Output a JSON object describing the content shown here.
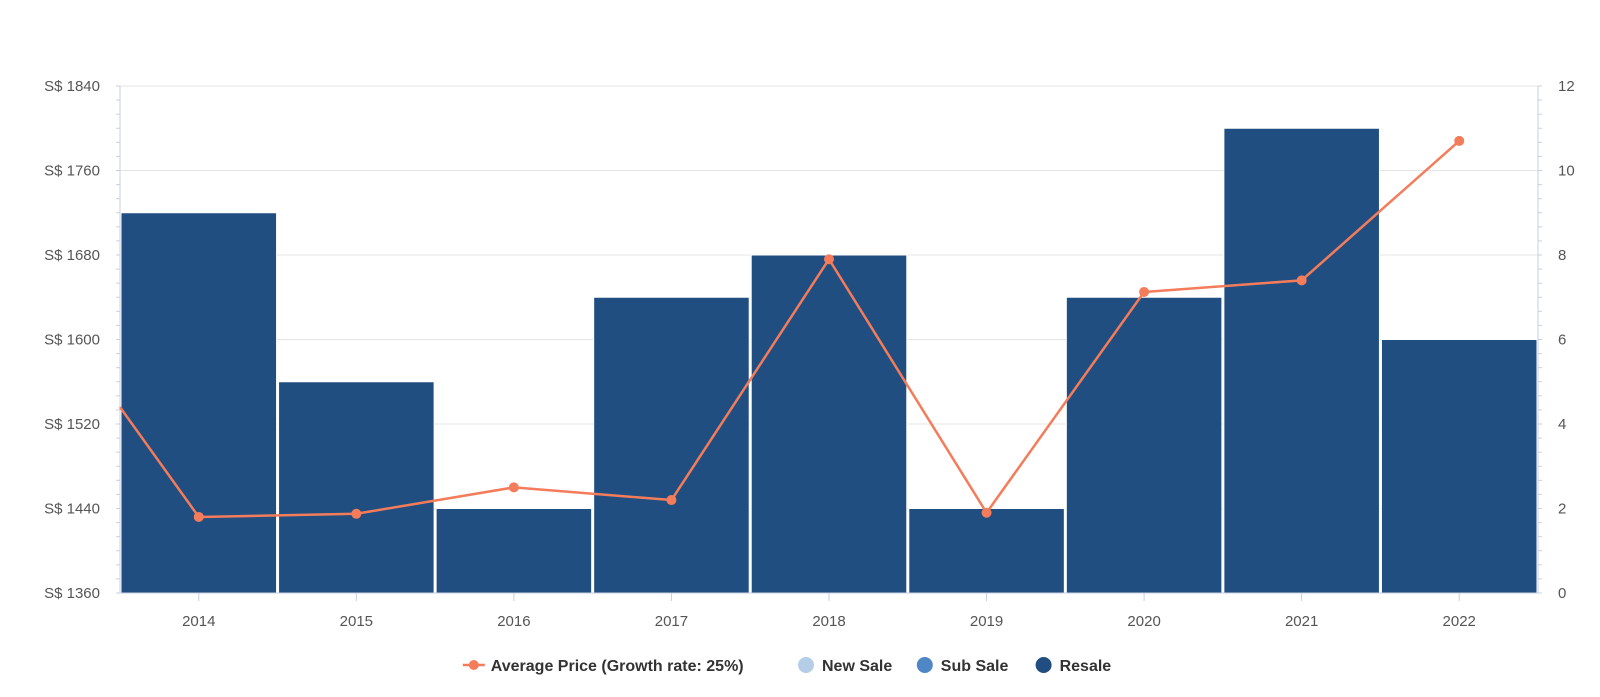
{
  "chart_data": {
    "type": "bar",
    "x": [
      "2014",
      "2015",
      "2016",
      "2017",
      "2018",
      "2019",
      "2020",
      "2021",
      "2022"
    ],
    "y_left": {
      "min": 1360,
      "max": 1840,
      "ticks": [
        1360,
        1440,
        1520,
        1600,
        1680,
        1760,
        1840
      ],
      "tick_prefix": "S$ "
    },
    "y_right": {
      "min": 0,
      "max": 12,
      "ticks": [
        0,
        2,
        4,
        6,
        8,
        10,
        12
      ]
    },
    "series": [
      {
        "name": "Average Price (Growth rate: 25%)",
        "type": "line",
        "axis": "left",
        "color": "#F47C5A",
        "values": [
          1432,
          1435,
          1460,
          1448,
          1676,
          1436,
          1645,
          1656,
          1788
        ],
        "left_edge_value": 1536
      },
      {
        "name": "New Sale",
        "type": "bar",
        "axis": "right",
        "color": "#B5CDE6",
        "values": [
          0,
          0,
          0,
          0,
          0,
          0,
          0,
          0,
          0
        ]
      },
      {
        "name": "Sub Sale",
        "type": "bar",
        "axis": "right",
        "color": "#4F86C6",
        "values": [
          0,
          0,
          0,
          0,
          0,
          0,
          0,
          0,
          0
        ]
      },
      {
        "name": "Resale",
        "type": "bar",
        "axis": "right",
        "color": "#204E80",
        "values": [
          9,
          5,
          2,
          7,
          8,
          2,
          7,
          11,
          6
        ]
      }
    ],
    "grid": true,
    "legend_position": "bottom-center"
  }
}
